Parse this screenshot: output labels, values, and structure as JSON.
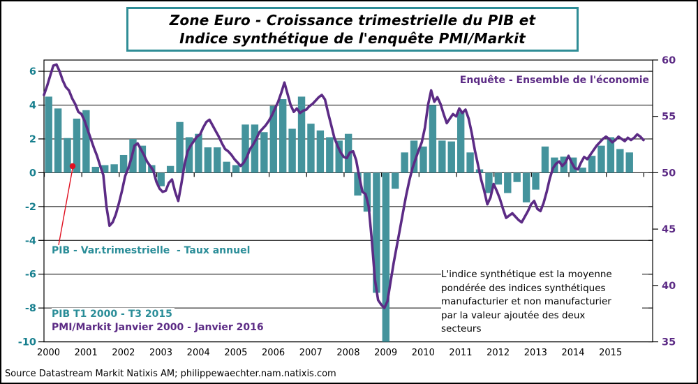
{
  "title": {
    "text": "Zone Euro - Croissance trimestrielle du PIB et\nIndice synthétique de l'enquête PMI/Markit"
  },
  "annotations": {
    "pmi_series_label": "Enquête - Ensemble de l'économie",
    "gdp_series_label": "PIB - Var.trimestrielle  - Taux annuel",
    "gdp_range_label": "PIB T1 2000 - T3 2015",
    "pmi_range_label": "PMI/Markit Janvier 2000 - Janvier 2016",
    "note": "L'indice synthétique est la moyenne\npondérée des indices synthétiques\nmanufacturier et non manufacturier\npar la valeur ajoutée  des deux\nsecteurs",
    "source": "Source Datastream Markit Natixis AM;  philippewaechter.nam.natixis.com"
  },
  "colors": {
    "bar": "#44939c",
    "line": "#5c2b85",
    "left_axis_text": "#177f8e",
    "right_axis_text": "#5c2b85",
    "year_text": "#000000",
    "grid": "#000000",
    "title_border": "#2f8d96",
    "annotation_red": "#e01020"
  },
  "chart_data": {
    "type": "bar+line",
    "title": "Zone Euro - Croissance trimestrielle du PIB et Indice synthétique de l'enquête PMI/Markit",
    "legend_position": "inline-annotations",
    "grid": "horizontal",
    "left_axis": {
      "min": -10,
      "max": 6.6,
      "ticks": [
        6,
        4,
        2,
        0,
        -2,
        -4,
        -6,
        -8,
        -10
      ]
    },
    "right_axis": {
      "min": 35,
      "max": 60,
      "ticks": [
        60,
        55,
        50,
        45,
        40,
        35
      ]
    },
    "x_axis": {
      "years": [
        "2000",
        "2001",
        "2002",
        "2003",
        "2004",
        "2005",
        "2006",
        "2007",
        "2008",
        "2009",
        "2010",
        "2011",
        "2012",
        "2013",
        "2014",
        "2015"
      ]
    },
    "series": [
      {
        "name": "PIB - Var.trimestrielle - Taux annuel",
        "type": "bar",
        "axis": "left",
        "frequency": "quarterly",
        "start": "2000Q1",
        "end": "2015Q3",
        "values": [
          4.5,
          3.8,
          2.05,
          3.2,
          3.7,
          0.35,
          0.45,
          0.5,
          1.05,
          2.0,
          1.6,
          0.45,
          -0.8,
          0.4,
          3.0,
          2.1,
          2.3,
          1.5,
          1.5,
          0.65,
          0.45,
          2.85,
          2.85,
          2.4,
          3.95,
          4.35,
          2.6,
          4.5,
          2.9,
          2.5,
          2.1,
          1.9,
          2.3,
          -1.35,
          -2.3,
          -7.1,
          -10.2,
          -0.95,
          1.2,
          1.9,
          1.55,
          4.0,
          1.9,
          1.85,
          3.6,
          1.2,
          0.2,
          -1.2,
          -0.7,
          -1.2,
          -0.55,
          -1.75,
          -1.0,
          1.55,
          0.9,
          0.95,
          0.9,
          0.3,
          1.0,
          1.6,
          2.1,
          1.4,
          1.2
        ]
      },
      {
        "name": "Enquête - Ensemble de l'économie",
        "type": "line",
        "axis": "right",
        "frequency": "monthly",
        "start": "2000-01",
        "end": "2016-01",
        "values": [
          56.9,
          57.7,
          58.6,
          59.5,
          59.6,
          59.0,
          58.2,
          57.6,
          57.3,
          56.6,
          56.1,
          55.4,
          55.2,
          54.6,
          53.8,
          53.0,
          52.2,
          51.5,
          50.6,
          49.8,
          47.0,
          45.3,
          45.6,
          46.3,
          47.3,
          48.4,
          49.7,
          50.4,
          51.3,
          52.4,
          52.6,
          52.1,
          51.6,
          51.0,
          50.6,
          50.2,
          49.2,
          48.6,
          48.3,
          48.4,
          49.1,
          49.4,
          48.3,
          47.5,
          49.0,
          50.7,
          51.9,
          52.4,
          52.8,
          53.2,
          53.4,
          54.0,
          54.5,
          54.7,
          54.2,
          53.7,
          53.2,
          52.6,
          52.1,
          51.9,
          51.6,
          51.2,
          50.9,
          50.6,
          50.9,
          51.4,
          52.1,
          52.5,
          53.0,
          53.6,
          53.9,
          54.2,
          54.6,
          55.1,
          55.7,
          56.3,
          57.1,
          58.0,
          57.0,
          56.0,
          55.4,
          55.7,
          55.3,
          55.5,
          55.6,
          55.9,
          56.1,
          56.4,
          56.7,
          56.9,
          56.5,
          55.3,
          54.2,
          53.1,
          52.4,
          51.8,
          51.4,
          51.3,
          51.8,
          51.9,
          51.1,
          49.6,
          48.3,
          48.1,
          47.0,
          44.0,
          40.5,
          38.7,
          38.3,
          38.0,
          38.6,
          40.3,
          42.0,
          43.5,
          45.0,
          46.5,
          48.0,
          49.3,
          50.4,
          51.2,
          52.0,
          52.7,
          54.0,
          56.0,
          57.3,
          56.3,
          56.7,
          56.1,
          55.2,
          54.4,
          54.8,
          55.2,
          55.0,
          55.7,
          55.3,
          55.6,
          54.8,
          53.5,
          52.0,
          50.7,
          49.4,
          48.4,
          47.2,
          47.8,
          49.0,
          48.4,
          47.7,
          46.8,
          46.0,
          46.2,
          46.4,
          46.1,
          45.8,
          45.6,
          46.1,
          46.6,
          47.2,
          47.5,
          46.8,
          46.6,
          47.3,
          48.3,
          49.5,
          50.4,
          50.8,
          51.0,
          50.6,
          50.9,
          51.5,
          50.9,
          50.4,
          50.3,
          50.9,
          51.4,
          51.2,
          51.6,
          52.0,
          52.4,
          52.7,
          53.0,
          53.2,
          53.0,
          52.7,
          52.9,
          53.2,
          53.0,
          52.8,
          53.1,
          52.9,
          53.1,
          53.4,
          53.2,
          52.9
        ]
      }
    ]
  }
}
